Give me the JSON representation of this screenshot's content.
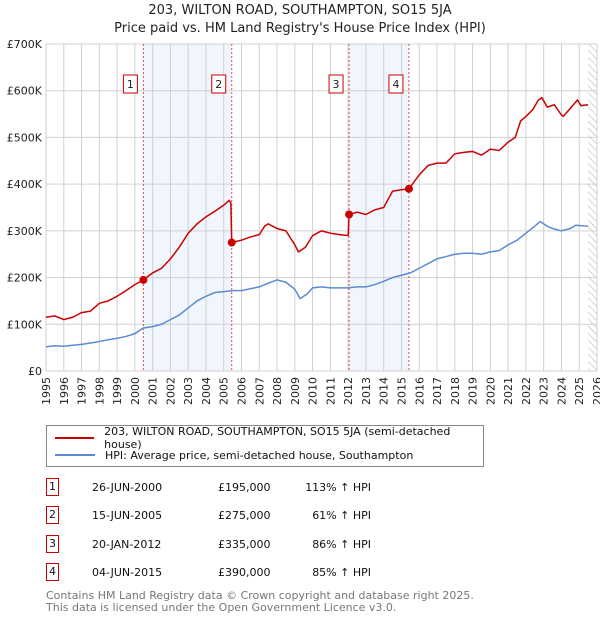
{
  "chart_data": {
    "type": "line",
    "title": "203, WILTON ROAD, SOUTHAMPTON, SO15 5JA",
    "subtitle": "Price paid vs. HM Land Registry's House Price Index (HPI)",
    "xlim": [
      1995,
      2026
    ],
    "ylim": [
      0,
      700000
    ],
    "x_ticks": [
      "1995",
      "1996",
      "1997",
      "1998",
      "1999",
      "2000",
      "2001",
      "2002",
      "2003",
      "2004",
      "2005",
      "2006",
      "2007",
      "2008",
      "2009",
      "2010",
      "2011",
      "2012",
      "2013",
      "2014",
      "2015",
      "2016",
      "2017",
      "2018",
      "2019",
      "2020",
      "2021",
      "2022",
      "2023",
      "2024",
      "2025",
      "2026"
    ],
    "y_ticks": [
      {
        "v": 0,
        "label": "£0"
      },
      {
        "v": 100000,
        "label": "£100K"
      },
      {
        "v": 200000,
        "label": "£200K"
      },
      {
        "v": 300000,
        "label": "£300K"
      },
      {
        "v": 400000,
        "label": "£400K"
      },
      {
        "v": 500000,
        "label": "£500K"
      },
      {
        "v": 600000,
        "label": "£600K"
      },
      {
        "v": 700000,
        "label": "£700K"
      }
    ],
    "grid": true,
    "forecast_hatch_from": 2025.5,
    "shaded_periods": [
      [
        2000.48,
        2005.45
      ],
      [
        2012.05,
        2015.42
      ]
    ],
    "series": [
      {
        "name": "203, WILTON ROAD, SOUTHAMPTON, SO15 5JA (semi-detached house)",
        "color": "#cc0000",
        "x": [
          1995,
          1995.5,
          1996,
          1996.5,
          1997,
          1997.5,
          1998,
          1998.5,
          1999,
          1999.5,
          2000,
          2000.48,
          2001,
          2001.5,
          2002,
          2002.5,
          2003,
          2003.5,
          2004,
          2004.5,
          2005,
          2005.3,
          2005.4,
          2005.45,
          2006,
          2006.5,
          2007,
          2007.3,
          2007.5,
          2008,
          2008.5,
          2009,
          2009.2,
          2009.6,
          2010,
          2010.5,
          2011,
          2011.5,
          2012,
          2012.05,
          2012.5,
          2013,
          2013.5,
          2014,
          2014.5,
          2015,
          2015.42,
          2016,
          2016.5,
          2017,
          2017.5,
          2018,
          2018.5,
          2019,
          2019.5,
          2020,
          2020.5,
          2021,
          2021.4,
          2021.7,
          2022,
          2022.4,
          2022.7,
          2022.9,
          2023.2,
          2023.6,
          2024,
          2024.1,
          2024.4,
          2024.9,
          2025.1,
          2025.5
        ],
        "y": [
          115000,
          118000,
          110000,
          115000,
          125000,
          128000,
          145000,
          150000,
          160000,
          172000,
          185000,
          195000,
          210000,
          220000,
          240000,
          265000,
          295000,
          315000,
          330000,
          342000,
          355000,
          365000,
          360000,
          275000,
          280000,
          287000,
          292000,
          310000,
          315000,
          305000,
          300000,
          270000,
          255000,
          265000,
          290000,
          300000,
          295000,
          292000,
          290000,
          335000,
          340000,
          335000,
          345000,
          350000,
          385000,
          388000,
          390000,
          420000,
          440000,
          445000,
          445000,
          465000,
          468000,
          470000,
          462000,
          475000,
          472000,
          490000,
          500000,
          535000,
          545000,
          560000,
          580000,
          585000,
          565000,
          570000,
          548000,
          545000,
          558000,
          580000,
          568000,
          570000
        ]
      },
      {
        "name": "HPI: Average price, semi-detached house, Southampton",
        "color": "#5b8bd0",
        "x": [
          1995,
          1995.5,
          1996,
          1996.5,
          1997,
          1997.5,
          1998,
          1998.5,
          1999,
          1999.5,
          2000,
          2000.48,
          2001,
          2001.5,
          2002,
          2002.5,
          2003,
          2003.5,
          2004,
          2004.5,
          2005,
          2005.5,
          2006,
          2006.5,
          2007,
          2007.5,
          2008,
          2008.5,
          2009,
          2009.3,
          2009.7,
          2010,
          2010.5,
          2011,
          2011.5,
          2012,
          2012.5,
          2013,
          2013.5,
          2014,
          2014.5,
          2015,
          2015.5,
          2016,
          2016.5,
          2017,
          2017.5,
          2018,
          2018.5,
          2019,
          2019.5,
          2020,
          2020.5,
          2021,
          2021.5,
          2022,
          2022.5,
          2022.8,
          2023.2,
          2023.5,
          2024,
          2024.5,
          2024.8,
          2025.5
        ],
        "y": [
          52000,
          54000,
          53000,
          55000,
          57000,
          60000,
          63000,
          67000,
          70000,
          74000,
          80000,
          92000,
          95000,
          100000,
          110000,
          120000,
          135000,
          150000,
          160000,
          168000,
          170000,
          172000,
          172000,
          176000,
          180000,
          188000,
          195000,
          190000,
          175000,
          155000,
          165000,
          178000,
          180000,
          178000,
          178000,
          178000,
          180000,
          180000,
          185000,
          192000,
          200000,
          205000,
          210000,
          220000,
          230000,
          240000,
          245000,
          250000,
          252000,
          252000,
          250000,
          255000,
          258000,
          270000,
          280000,
          295000,
          310000,
          320000,
          310000,
          305000,
          300000,
          305000,
          312000,
          310000
        ]
      }
    ],
    "sales": [
      {
        "n": "1",
        "date": "26-JUN-2000",
        "x": 2000.48,
        "price": 195000,
        "price_label": "£195,000",
        "hpi": "113% ↑ HPI"
      },
      {
        "n": "2",
        "date": "15-JUN-2005",
        "x": 2005.45,
        "price": 275000,
        "price_label": "£275,000",
        "hpi": "61% ↑ HPI"
      },
      {
        "n": "3",
        "date": "20-JAN-2012",
        "x": 2012.05,
        "price": 335000,
        "price_label": "£335,000",
        "hpi": "86% ↑ HPI"
      },
      {
        "n": "4",
        "date": "04-JUN-2015",
        "x": 2015.42,
        "price": 390000,
        "price_label": "£390,000",
        "hpi": "85% ↑ HPI"
      }
    ]
  },
  "footer": {
    "line1": "Contains HM Land Registry data © Crown copyright and database right 2025.",
    "line2": "This data is licensed under the Open Government Licence v3.0."
  }
}
